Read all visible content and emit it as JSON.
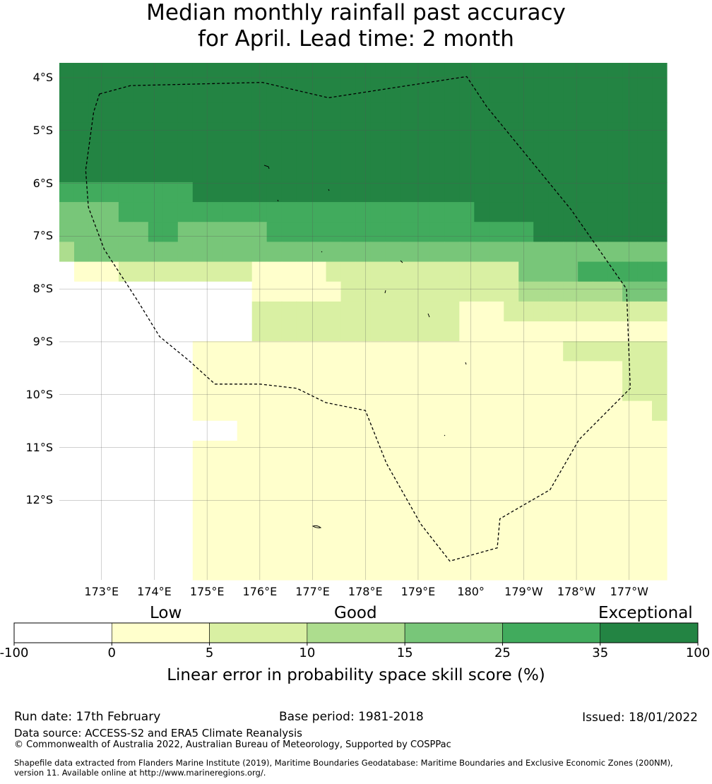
{
  "title": {
    "line1": "Median monthly rainfall past accuracy",
    "line2": "for April. Lead time: 2 month"
  },
  "map": {
    "lat_labels": [
      "4°S",
      "5°S",
      "6°S",
      "7°S",
      "8°S",
      "9°S",
      "10°S",
      "11°S",
      "12°S"
    ],
    "lon_labels": [
      "173°E",
      "174°E",
      "175°E",
      "176°E",
      "177°E",
      "178°E",
      "179°E",
      "180°",
      "179°W",
      "178°W",
      "177°W"
    ],
    "lon_start_deg": 172.2,
    "col_width_deg": 0.833,
    "lat_top_deg": -3.72,
    "row_height_deg": 0.556,
    "grid_skill_classes": [
      "66666666666666666666666666666666666666666",
      "66666666666666666666666666666666666666666",
      "66666666666666666666666666666666666666666",
      "66666666666666666666666666666666666666666",
      "66666666666666666666666666666666666666666",
      "66666666666666666666666666666666666666666",
      "55555555566666666666666666666666666666666",
      "44445555555555555555555555556666666666666",
      "44444455444444555555555555555555666666666",
      "34444444444444444444444444444444444444444",
      "01112222222221111122222222222224444555555",
      "00000000000001111112222222222223333333444",
      "00000000000002222222222222211122222222222",
      "00000000000002222222222222211111111111111",
      "00000000011111111111111111111111112222222",
      "00000000011111111111111111111111111111222",
      "00000000011111111111111111111111111111222",
      "00000000011111111111111111111111111111112",
      "00000000000011111111111111111111111111111",
      "00000000011111111111111111111111111111111",
      "00000000011111111111111111111111111111111",
      "00000000011111111111111111111111111111111",
      "00000000011111111111111111111111111111111",
      "00000000011111111111111111111111111111111",
      "00000000011111111111111111111111111111111",
      "00000000011111111111111111111111111111111"
    ],
    "eez_boundary_lonlat": [
      [
        172.96,
        -4.31
      ],
      [
        173.55,
        -4.15
      ],
      [
        176.05,
        -4.09
      ],
      [
        177.3,
        -4.38
      ],
      [
        179.92,
        -3.98
      ],
      [
        -179.7,
        -4.55
      ],
      [
        -178.1,
        -6.5
      ],
      [
        -177.05,
        -8.0
      ],
      [
        -176.98,
        -9.88
      ],
      [
        -177.95,
        -10.85
      ],
      [
        -178.5,
        -11.8
      ],
      [
        -179.45,
        -12.35
      ],
      [
        -179.5,
        -12.9
      ],
      [
        -180.4,
        -13.15
      ],
      [
        -180.95,
        -12.45
      ],
      [
        -181.6,
        -11.3
      ],
      [
        -182.0,
        -10.3
      ],
      [
        -182.75,
        -10.15
      ],
      [
        -183.3,
        -9.88
      ],
      [
        -184.0,
        -9.8
      ],
      [
        -184.85,
        -9.8
      ],
      [
        -185.35,
        -9.35
      ],
      [
        -185.9,
        -8.9
      ],
      [
        -186.3,
        -8.25
      ],
      [
        -186.95,
        -7.25
      ],
      [
        -187.25,
        -6.45
      ],
      [
        -187.3,
        -5.75
      ],
      [
        -187.15,
        -4.65
      ],
      [
        -187.04,
        -4.31
      ]
    ]
  },
  "legend": {
    "category_labels": [
      "Low",
      "Good",
      "Exceptional"
    ],
    "colors": [
      "#ffffff",
      "#ffffcc",
      "#d9f0a3",
      "#addd8e",
      "#78c679",
      "#41ab5d",
      "#238443"
    ],
    "tick_labels": [
      "-100",
      "0",
      "5",
      "10",
      "15",
      "25",
      "35",
      "100"
    ],
    "axis_title": "Linear error in probability space skill score (%)"
  },
  "footer": {
    "run_date": "Run date: 17th February",
    "base_period": "Base period: 1981-2018",
    "issued": "Issued: 18/01/2022",
    "data_source": "Data source: ACCESS-S2 and ERA5 Climate Reanalysis",
    "copyright": "© Commonwealth of Australia 2022, Australian Bureau of Meteorology, Supported by COSPPac",
    "shapefile_line1": "Shapefile data extracted from Flanders Marine Institute (2019), Maritime Boundaries Geodatabase: Maritime Boundaries and Exclusive Economic Zones (200NM),",
    "shapefile_line2": "version 11. Available online at http://www.marineregions.org/."
  }
}
